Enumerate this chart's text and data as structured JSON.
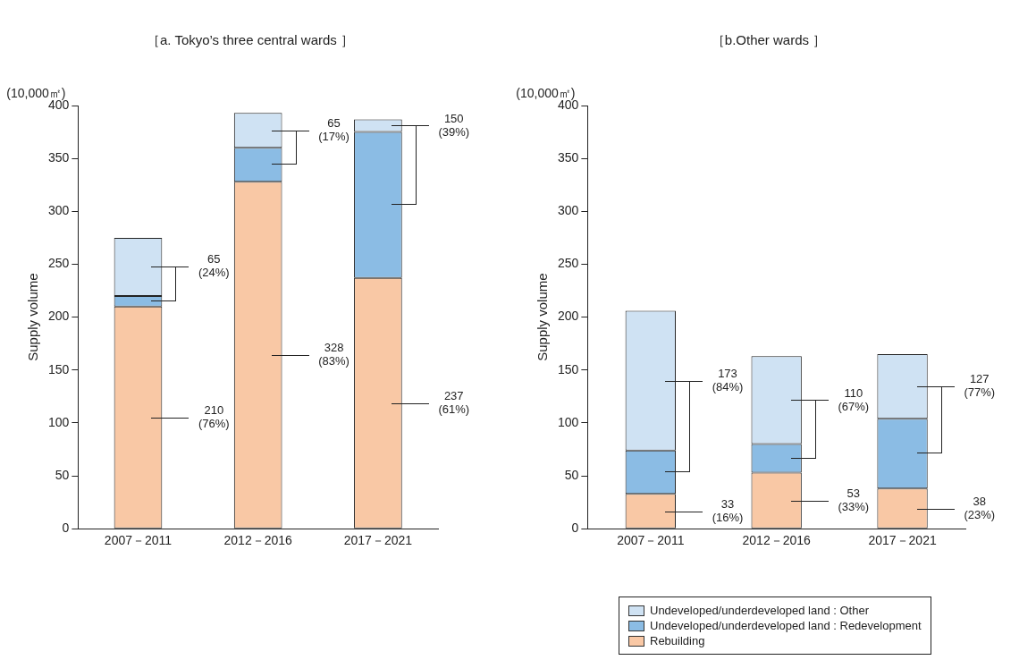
{
  "chart_data": [
    {
      "type": "bar",
      "title": "［a. Tokyo’s three central wards ］",
      "ylabel": "Supply volume",
      "categories": [
        "2007－2011",
        "2012－2016",
        "2017－2021"
      ],
      "stacked": true,
      "ylim": [
        0,
        400
      ],
      "yticks": [
        0,
        50,
        100,
        150,
        200,
        250,
        300,
        350,
        400
      ],
      "grid": false,
      "legend": false,
      "series": [
        {
          "color": "#f9c8a5",
          "values": [
            210,
            328,
            237
          ]
        },
        {
          "color": "#8bbce4",
          "values": [
            10,
            32,
            138
          ]
        },
        {
          "color": "#cfe2f3",
          "values": [
            55,
            33,
            12
          ]
        }
      ],
      "annotations": [
        "(10,000㎡)",
        "65\n(24%)",
        "65\n(17%)",
        "150\n(39%)",
        "210\n(76%)",
        "328\n(83%)",
        "237\n(61%)"
      ]
    },
    {
      "type": "bar",
      "title": "［b.Other wards ］",
      "ylabel": "Supply volume",
      "categories": [
        "2007－2011",
        "2012－2016",
        "2017－2021"
      ],
      "stacked": true,
      "ylim": [
        0,
        400
      ],
      "yticks": [
        0,
        50,
        100,
        150,
        200,
        250,
        300,
        350,
        400
      ],
      "grid": false,
      "legend": "bottom right",
      "series": [
        {
          "name": "Rebuilding",
          "color": "#f9c8a5",
          "values": [
            33,
            53,
            38
          ]
        },
        {
          "name": "Undeveloped/underdeveloped land : Redevelopment",
          "color": "#8bbce4",
          "values": [
            41,
            27,
            66
          ]
        },
        {
          "name": "Undeveloped/underdeveloped land : Other",
          "color": "#cfe2f3",
          "values": [
            132,
            83,
            61
          ]
        }
      ],
      "annotations": [
        "(10,000㎡)",
        "173\n(84%)",
        "110\n(67%)",
        "127\n(77%)",
        "33\n(16%)",
        "53\n(33%)",
        "38\n(23%)"
      ]
    }
  ]
}
